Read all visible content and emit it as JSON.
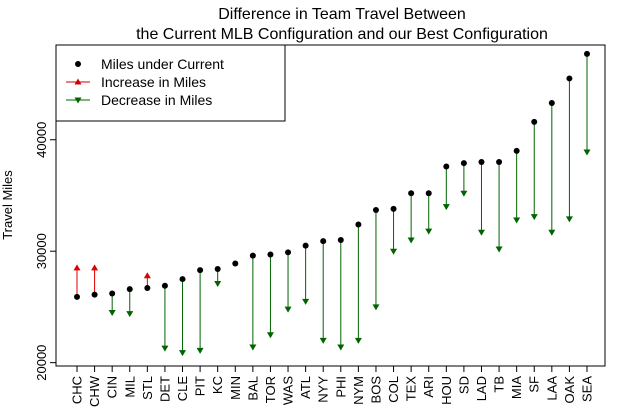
{
  "chart_data": {
    "type": "scatter",
    "title_lines": [
      "Difference in Team Travel Between",
      "the Current MLB Configuration and our Best Configuration"
    ],
    "xlabel": "",
    "ylabel": "Travel Miles",
    "ylim": [
      19700,
      48500
    ],
    "yticks": [
      20000,
      30000,
      40000
    ],
    "grid": false,
    "legend_position": "top-left",
    "legend": [
      {
        "label": "Miles under Current",
        "kind": "point",
        "color": "#000000"
      },
      {
        "label": "Increase in Miles",
        "kind": "arrow-up",
        "color": "#cc0000"
      },
      {
        "label": "Decrease in Miles",
        "kind": "arrow-down",
        "color": "#006400"
      }
    ],
    "colors": {
      "point": "#000000",
      "increase": "#dd0000",
      "decrease": "#006400"
    },
    "categories": [
      "CHC",
      "CHW",
      "CIN",
      "MIL",
      "STL",
      "DET",
      "CLE",
      "PIT",
      "KC",
      "MIN",
      "BAL",
      "TOR",
      "WAS",
      "ATL",
      "NYY",
      "PHI",
      "NYM",
      "BOS",
      "COL",
      "TEX",
      "ARI",
      "HOU",
      "SD",
      "LAD",
      "TB",
      "MIA",
      "SF",
      "LAA",
      "OAK",
      "SEA"
    ],
    "series": [
      {
        "name": "Miles under Current",
        "values": [
          25900,
          26100,
          26200,
          26600,
          26700,
          26900,
          27500,
          28300,
          28400,
          28900,
          29600,
          29700,
          29900,
          30500,
          30900,
          31000,
          32400,
          33700,
          33800,
          35200,
          35200,
          37600,
          37900,
          38000,
          38000,
          39000,
          41600,
          43300,
          45500,
          47700
        ]
      },
      {
        "name": "Best Configuration",
        "values": [
          28500,
          28500,
          24500,
          24400,
          27800,
          21300,
          20900,
          21100,
          27100,
          29100,
          21400,
          22500,
          24800,
          25500,
          22000,
          21400,
          22000,
          25000,
          30000,
          31000,
          31800,
          34000,
          35200,
          31700,
          30200,
          32800,
          33100,
          31700,
          32900,
          38900
        ]
      }
    ]
  }
}
